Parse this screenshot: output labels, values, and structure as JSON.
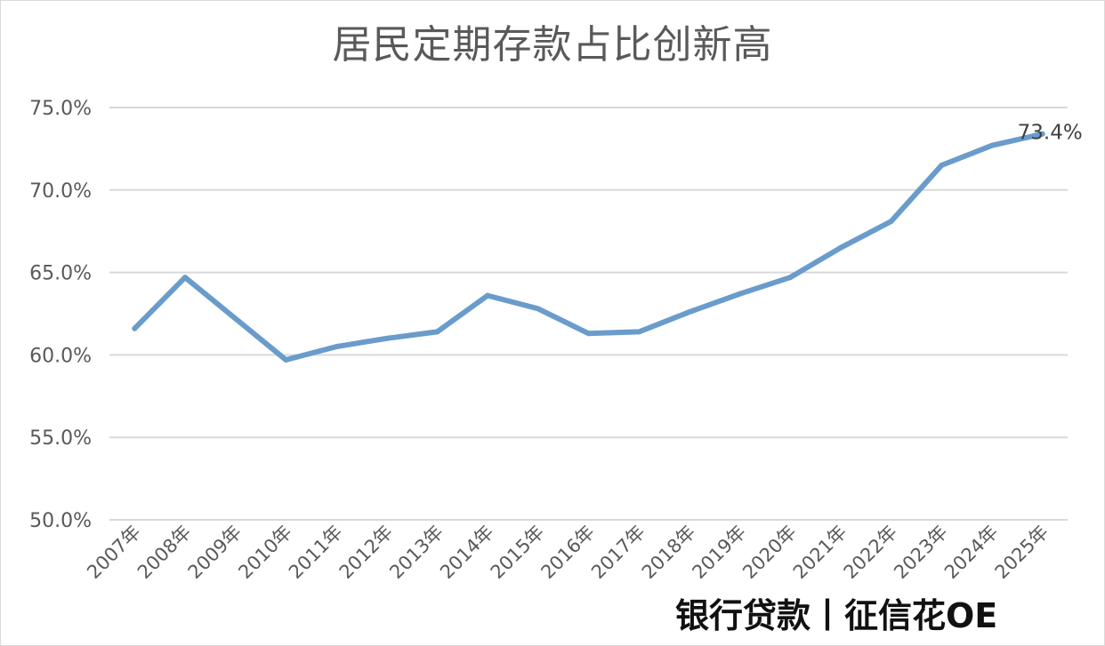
{
  "colors": {
    "line": "#6a9ccb",
    "grid": "#d9d9d9",
    "text": "#595959"
  },
  "watermark": "银行贷款丨征信花OE",
  "chart_data": {
    "type": "line",
    "title": "居民定期存款占比创新高",
    "xlabel": "",
    "ylabel": "",
    "categories": [
      "2007年",
      "2008年",
      "2009年",
      "2010年",
      "2011年",
      "2012年",
      "2013年",
      "2014年",
      "2015年",
      "2016年",
      "2017年",
      "2018年",
      "2019年",
      "2020年",
      "2021年",
      "2022年",
      "2023年",
      "2024年",
      "2025年"
    ],
    "series": [
      {
        "values": [
          61.6,
          64.7,
          62.2,
          59.7,
          60.5,
          61.0,
          61.4,
          63.6,
          62.8,
          61.3,
          61.4,
          62.6,
          63.7,
          64.7,
          66.5,
          68.1,
          71.5,
          72.7,
          73.4
        ]
      }
    ],
    "ylim": [
      50,
      75
    ],
    "yticks": [
      "50.0%",
      "55.0%",
      "60.0%",
      "65.0%",
      "70.0%",
      "75.0%"
    ],
    "grid": true,
    "legend": "none",
    "annotations": [
      {
        "category": "2025年",
        "text": "73.4%"
      }
    ]
  }
}
